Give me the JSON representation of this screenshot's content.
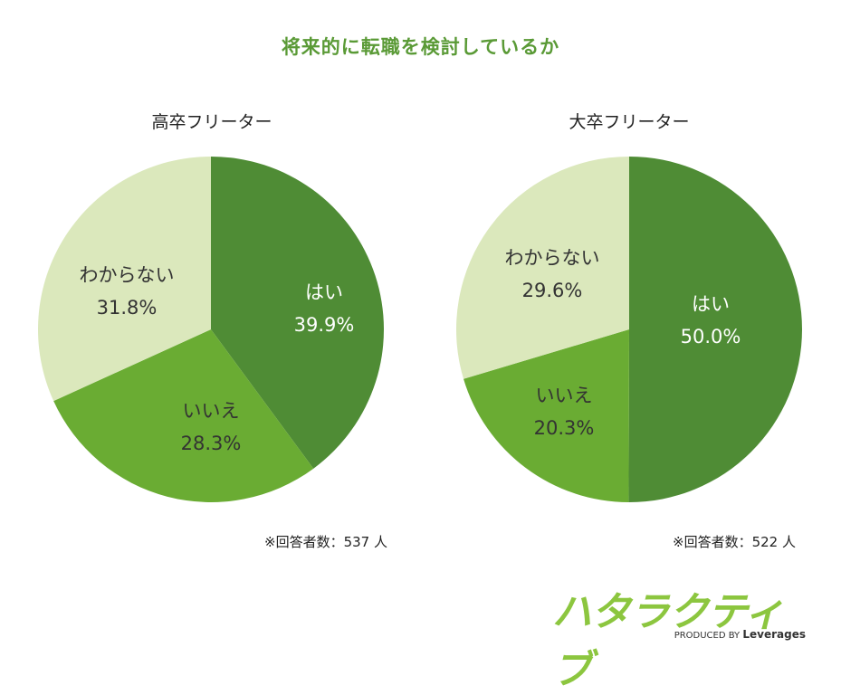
{
  "title": "将来的に転職を検討しているか",
  "chart_data": [
    {
      "type": "pie",
      "title": "高卒フリーター",
      "slices": [
        {
          "label": "はい",
          "value": 39.9,
          "value_text": "39.9%",
          "color": "#4f8c35"
        },
        {
          "label": "いいえ",
          "value": 28.3,
          "value_text": "28.3%",
          "color": "#6aac33"
        },
        {
          "label": "わからない",
          "value": 31.8,
          "value_text": "31.8%",
          "color": "#dbe8bc"
        }
      ],
      "respondents": "※回答者数：537 人"
    },
    {
      "type": "pie",
      "title": "大卒フリーター",
      "slices": [
        {
          "label": "はい",
          "value": 50.0,
          "value_text": "50.0%",
          "color": "#4f8c35"
        },
        {
          "label": "いいえ",
          "value": 20.3,
          "value_text": "20.3%",
          "color": "#6aac33"
        },
        {
          "label": "わからない",
          "value": 29.6,
          "value_text": "29.6%",
          "color": "#dbe8bc"
        }
      ],
      "respondents": "※回答者数：522 人"
    }
  ],
  "logo": {
    "name": "ハタラクティブ",
    "produced_by": "PRODUCED BY",
    "brand": "Leverages",
    "color": "#8cc63f"
  }
}
